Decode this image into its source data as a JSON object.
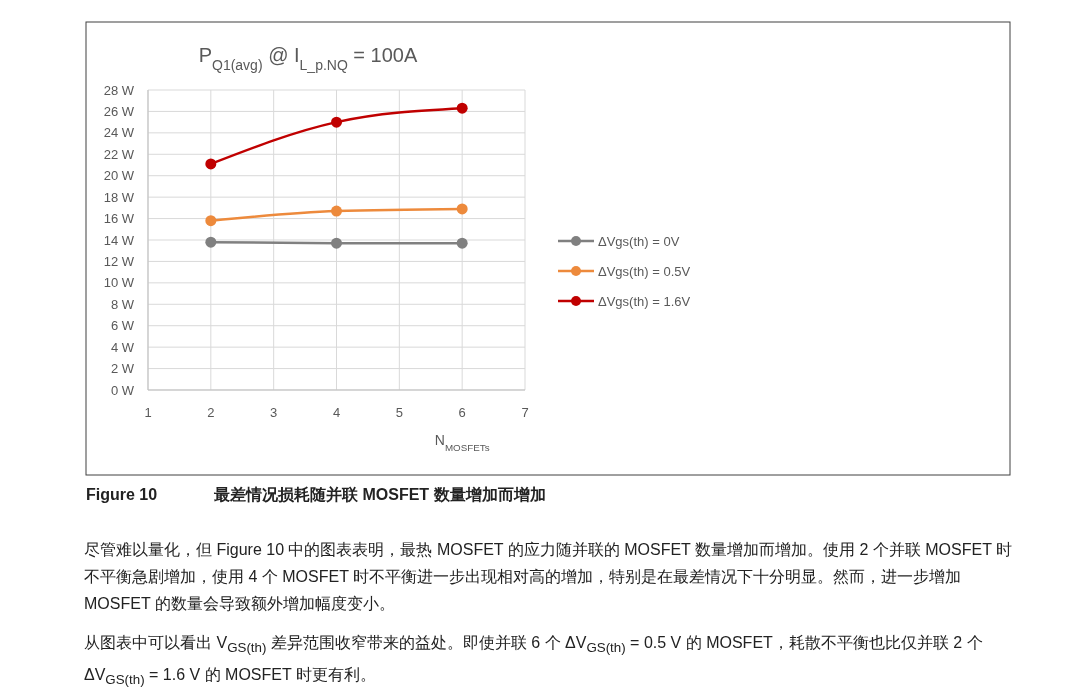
{
  "chart_data": {
    "type": "line",
    "title": "P$_{Q1(avg)}$ @ I$_{L_p.NQ}$ = 100A",
    "xlabel": "N$_{MOSFETs}$",
    "x": [
      2,
      4,
      6
    ],
    "series": [
      {
        "name": "ΔVgs(th) = 0V",
        "color": "#808080",
        "values": [
          13.8,
          13.7,
          13.7
        ]
      },
      {
        "name": "ΔVgs(th) = 0.5V",
        "color": "#ed8a3c",
        "values": [
          15.8,
          16.7,
          16.9
        ]
      },
      {
        "name": "ΔVgs(th) = 1.6V",
        "color": "#c00000",
        "values": [
          21.1,
          25.0,
          26.3
        ]
      }
    ],
    "xlim": [
      1,
      7
    ],
    "xticks": [
      1,
      2,
      3,
      4,
      5,
      6,
      7
    ],
    "ylim": [
      0,
      28
    ],
    "yticks": [
      {
        "value": 0,
        "label": "0 W"
      },
      {
        "value": 2,
        "label": "2 W"
      },
      {
        "value": 4,
        "label": "4 W"
      },
      {
        "value": 6,
        "label": "6 W"
      },
      {
        "value": 8,
        "label": "8 W"
      },
      {
        "value": 10,
        "label": "10 W"
      },
      {
        "value": 12,
        "label": "12 W"
      },
      {
        "value": 14,
        "label": "14 W"
      },
      {
        "value": 16,
        "label": "16 W"
      },
      {
        "value": 18,
        "label": "18 W"
      },
      {
        "value": 20,
        "label": "20 W"
      },
      {
        "value": 22,
        "label": "22 W"
      },
      {
        "value": 24,
        "label": "24 W"
      },
      {
        "value": 26,
        "label": "26 W"
      },
      {
        "value": 28,
        "label": "28 W"
      }
    ],
    "grid": true,
    "legend": "right",
    "marker": "circle",
    "line_style": "solid",
    "annotations": [
      "Figure 10",
      "最差情况损耗随并联 MOSFET 数量增加而增加",
      "尽管难以量化，但 Figure 10 中的图表表明，最热 MOSFET 的应力随并联的 MOSFET 数量增加而增加。使用 2 个并联 MOSFET 时不平衡急剧增加，使用 4 个 MOSFET 时不平衡进一步出现相对高的增加，特别是在最差情况下十分明显。然而，进一步增加 MOSFET 的数量会导致额外增加幅度变小。",
      "从图表中可以看出 V$_{GS(th)}$ 差异范围收窄带来的益处。即使并联 6 个 ΔV$_{GS(th)}$ = 0.5 V 的 MOSFET，耗散不平衡也比仅并联 2 个 ΔV$_{GS(th)}$ = 1.6 V 的 MOSFET 时更有利。"
    ]
  }
}
